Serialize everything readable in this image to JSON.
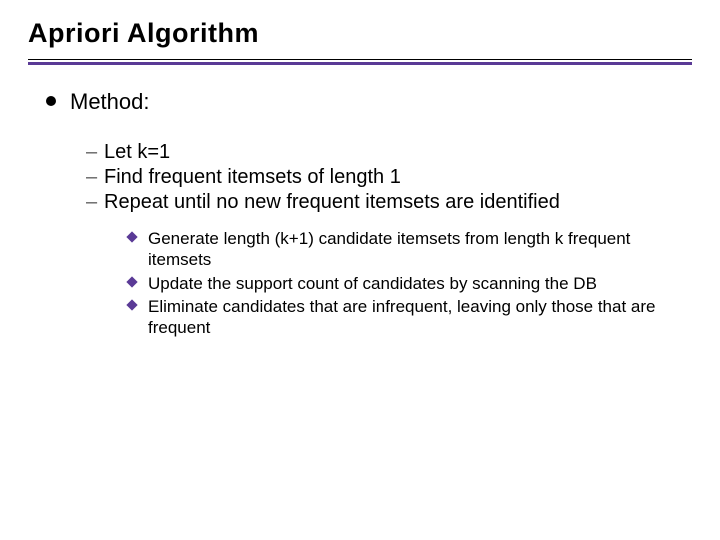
{
  "title": "Apriori Algorithm",
  "title_fontsize": 27,
  "title_color": "#000000",
  "rule": {
    "top_color": "#000000",
    "top_thickness": 1,
    "bottom_color": "#5a3a96",
    "bottom_thickness": 3
  },
  "level1": {
    "bullet_color": "#000000",
    "fontsize": 22,
    "items": [
      {
        "text": "Method:"
      }
    ]
  },
  "level2": {
    "dash_color": "#606060",
    "fontsize": 20,
    "items": [
      {
        "text": "Let k=1"
      },
      {
        "text": "Find frequent itemsets of length 1"
      },
      {
        "text": "Repeat until no new frequent itemsets are identified"
      }
    ]
  },
  "level3": {
    "diamond_color": "#5a3a96",
    "fontsize": 17,
    "items": [
      {
        "text": "Generate length (k+1) candidate itemsets from length k frequent itemsets"
      },
      {
        "text": "Update the support count of candidates by scanning the DB"
      },
      {
        "text": "Eliminate candidates that are infrequent, leaving only those that are frequent"
      }
    ]
  },
  "background_color": "#ffffff"
}
